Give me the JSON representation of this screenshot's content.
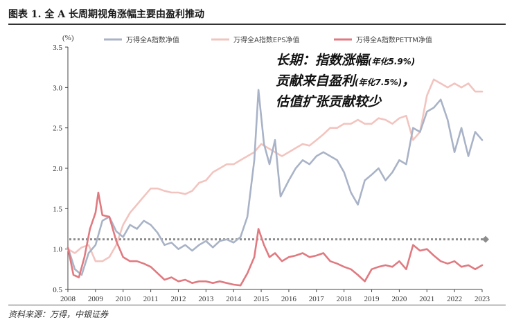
{
  "header": {
    "title": "图表 1. 全 A 长周期视角涨幅主要由盈利推动"
  },
  "footer": {
    "source": "资料来源：万得，中银证券"
  },
  "colors": {
    "nav": "#a9b3c7",
    "eps": "#f2c4bf",
    "pe": "#e07a80",
    "ref": "#8c8c8c"
  },
  "chart_data": {
    "type": "line",
    "title": "图表 1. 全 A 长周期视角涨幅主要由盈利推动",
    "ylabel": "(%)",
    "xlabel": "",
    "ylim": [
      0.5,
      3.5
    ],
    "yticks": [
      "3.5",
      "3.0",
      "2.5",
      "2.0",
      "1.5",
      "1.0",
      "0.5"
    ],
    "ytick_values": [
      3.5,
      3.0,
      2.5,
      2.0,
      1.5,
      1.0,
      0.5
    ],
    "xlim": [
      2008,
      2023
    ],
    "xticks": [
      "2008",
      "2009",
      "2010",
      "2011",
      "2012",
      "2013",
      "2014",
      "2015",
      "2016",
      "2017",
      "2018",
      "2019",
      "2020",
      "2021",
      "2022",
      "2023"
    ],
    "legend_position": "top",
    "grid": false,
    "reference_line": {
      "y": 1.12,
      "style": "dotted"
    },
    "annotation": [
      {
        "text": "长期：指数涨幅",
        "small": "(年化5.9%)"
      },
      {
        "text": "贡献来自盈利",
        "small": "(年化7.5%)",
        "tail": "，"
      },
      {
        "text": "估值扩张贡献较少",
        "small": ""
      }
    ],
    "series": [
      {
        "name": "万得全A指数净值",
        "x": [
          2008.0,
          2008.25,
          2008.5,
          2008.75,
          2009.0,
          2009.25,
          2009.5,
          2009.75,
          2010.0,
          2010.25,
          2010.5,
          2010.75,
          2011.0,
          2011.25,
          2011.5,
          2011.75,
          2012.0,
          2012.25,
          2012.5,
          2012.75,
          2013.0,
          2013.25,
          2013.5,
          2013.75,
          2014.0,
          2014.25,
          2014.5,
          2014.75,
          2014.9,
          2015.1,
          2015.3,
          2015.5,
          2015.7,
          2016.0,
          2016.25,
          2016.5,
          2016.75,
          2017.0,
          2017.25,
          2017.5,
          2017.75,
          2018.0,
          2018.25,
          2018.5,
          2018.75,
          2019.0,
          2019.25,
          2019.5,
          2019.75,
          2020.0,
          2020.25,
          2020.5,
          2020.75,
          2021.0,
          2021.25,
          2021.5,
          2021.75,
          2022.0,
          2022.25,
          2022.5,
          2022.75,
          2023.0
        ],
        "values": [
          1.02,
          0.75,
          0.68,
          0.95,
          1.05,
          1.35,
          1.4,
          1.22,
          1.15,
          1.3,
          1.25,
          1.35,
          1.3,
          1.2,
          1.05,
          1.08,
          1.0,
          1.05,
          0.98,
          1.05,
          1.1,
          1.02,
          1.1,
          1.12,
          1.08,
          1.15,
          1.4,
          2.1,
          2.97,
          2.3,
          2.05,
          2.35,
          1.65,
          1.85,
          2.0,
          2.1,
          2.05,
          2.15,
          2.2,
          2.15,
          2.1,
          1.95,
          1.7,
          1.55,
          1.85,
          1.92,
          2.0,
          1.85,
          1.95,
          2.1,
          2.05,
          2.5,
          2.45,
          2.7,
          2.75,
          2.85,
          2.6,
          2.2,
          2.5,
          2.15,
          2.45,
          2.35
        ]
      },
      {
        "name": "万得全A指数EPS净值",
        "x": [
          2008.0,
          2008.25,
          2008.5,
          2008.75,
          2009.0,
          2009.25,
          2009.5,
          2009.75,
          2010.0,
          2010.25,
          2010.5,
          2010.75,
          2011.0,
          2011.25,
          2011.5,
          2011.75,
          2012.0,
          2012.25,
          2012.5,
          2012.75,
          2013.0,
          2013.25,
          2013.5,
          2013.75,
          2014.0,
          2014.25,
          2014.5,
          2014.75,
          2015.0,
          2015.25,
          2015.5,
          2015.75,
          2016.0,
          2016.25,
          2016.5,
          2016.75,
          2017.0,
          2017.25,
          2017.5,
          2017.75,
          2018.0,
          2018.25,
          2018.5,
          2018.75,
          2019.0,
          2019.25,
          2019.5,
          2019.75,
          2020.0,
          2020.25,
          2020.5,
          2020.75,
          2021.0,
          2021.25,
          2021.5,
          2021.75,
          2022.0,
          2022.25,
          2022.5,
          2022.75,
          2023.0
        ],
        "values": [
          1.0,
          0.95,
          1.02,
          1.05,
          0.85,
          0.85,
          0.9,
          1.05,
          1.3,
          1.45,
          1.55,
          1.65,
          1.75,
          1.75,
          1.72,
          1.7,
          1.7,
          1.68,
          1.72,
          1.82,
          1.85,
          1.95,
          2.0,
          2.05,
          2.05,
          2.1,
          2.15,
          2.2,
          2.3,
          2.25,
          2.2,
          2.15,
          2.2,
          2.25,
          2.3,
          2.28,
          2.35,
          2.42,
          2.5,
          2.5,
          2.55,
          2.55,
          2.6,
          2.55,
          2.55,
          2.62,
          2.6,
          2.55,
          2.62,
          2.65,
          2.35,
          2.45,
          2.9,
          3.1,
          3.05,
          3.0,
          3.05,
          3.0,
          3.05,
          2.95,
          2.95
        ]
      },
      {
        "name": "万得全A指数PETTM净值",
        "x": [
          2008.0,
          2008.2,
          2008.4,
          2008.6,
          2008.8,
          2009.0,
          2009.1,
          2009.25,
          2009.5,
          2009.75,
          2010.0,
          2010.25,
          2010.5,
          2010.75,
          2011.0,
          2011.25,
          2011.5,
          2011.75,
          2012.0,
          2012.25,
          2012.5,
          2012.75,
          2013.0,
          2013.25,
          2013.5,
          2013.75,
          2014.0,
          2014.25,
          2014.5,
          2014.75,
          2014.9,
          2015.1,
          2015.3,
          2015.5,
          2015.75,
          2016.0,
          2016.25,
          2016.5,
          2016.75,
          2017.0,
          2017.25,
          2017.5,
          2017.75,
          2018.0,
          2018.25,
          2018.5,
          2018.75,
          2019.0,
          2019.25,
          2019.5,
          2019.75,
          2020.0,
          2020.25,
          2020.5,
          2020.75,
          2021.0,
          2021.25,
          2021.5,
          2021.75,
          2022.0,
          2022.25,
          2022.5,
          2022.75,
          2023.0
        ],
        "values": [
          1.02,
          0.68,
          0.65,
          0.9,
          1.25,
          1.45,
          1.7,
          1.42,
          1.4,
          1.1,
          0.9,
          0.85,
          0.85,
          0.82,
          0.78,
          0.7,
          0.62,
          0.65,
          0.6,
          0.62,
          0.58,
          0.6,
          0.6,
          0.58,
          0.6,
          0.58,
          0.56,
          0.55,
          0.7,
          0.9,
          1.25,
          1.05,
          0.9,
          0.95,
          0.85,
          0.9,
          0.92,
          0.95,
          0.9,
          0.92,
          0.95,
          0.85,
          0.82,
          0.78,
          0.75,
          0.68,
          0.6,
          0.75,
          0.78,
          0.8,
          0.78,
          0.85,
          0.75,
          1.05,
          0.98,
          1.0,
          0.92,
          0.85,
          0.82,
          0.85,
          0.78,
          0.8,
          0.75,
          0.8
        ]
      }
    ]
  }
}
